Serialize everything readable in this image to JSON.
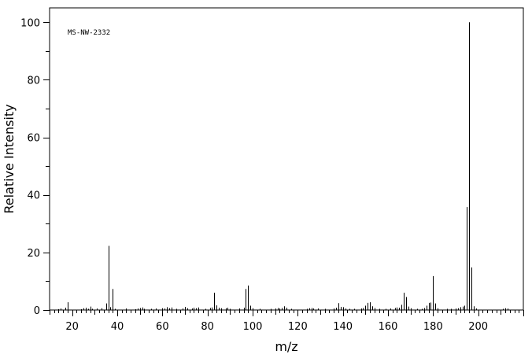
{
  "chart_data": {
    "type": "bar",
    "annotation": "MS-NW-2332",
    "xlabel": "m/z",
    "ylabel": "Relative Intensity",
    "xlim": [
      10,
      220
    ],
    "ylim": [
      0,
      105
    ],
    "x_ticks": [
      20,
      40,
      60,
      80,
      100,
      120,
      140,
      160,
      180,
      200
    ],
    "y_ticks": [
      0,
      20,
      40,
      60,
      80,
      100
    ],
    "grid": false,
    "legend": "none",
    "colors": {
      "line": "#000000",
      "background": "#ffffff"
    },
    "peaks": [
      {
        "x": 14,
        "y": 0.3
      },
      {
        "x": 15,
        "y": 0.5
      },
      {
        "x": 17,
        "y": 0.8
      },
      {
        "x": 18,
        "y": 2.7
      },
      {
        "x": 24,
        "y": 0.3
      },
      {
        "x": 25,
        "y": 0.6
      },
      {
        "x": 26,
        "y": 0.8
      },
      {
        "x": 27,
        "y": 0.4
      },
      {
        "x": 28,
        "y": 1.2
      },
      {
        "x": 29,
        "y": 0.4
      },
      {
        "x": 31,
        "y": 0.5
      },
      {
        "x": 33,
        "y": 0.6
      },
      {
        "x": 35,
        "y": 2.3
      },
      {
        "x": 36,
        "y": 22.3
      },
      {
        "x": 37,
        "y": 1.0
      },
      {
        "x": 38,
        "y": 7.3
      },
      {
        "x": 39,
        "y": 0.4
      },
      {
        "x": 44,
        "y": 0.5
      },
      {
        "x": 48,
        "y": 0.3
      },
      {
        "x": 49,
        "y": 0.5
      },
      {
        "x": 50,
        "y": 0.7
      },
      {
        "x": 51,
        "y": 0.9
      },
      {
        "x": 52,
        "y": 0.4
      },
      {
        "x": 55,
        "y": 0.4
      },
      {
        "x": 57,
        "y": 0.5
      },
      {
        "x": 60,
        "y": 0.6
      },
      {
        "x": 61,
        "y": 0.5
      },
      {
        "x": 62,
        "y": 1.0
      },
      {
        "x": 63,
        "y": 0.6
      },
      {
        "x": 64,
        "y": 0.9
      },
      {
        "x": 66,
        "y": 0.4
      },
      {
        "x": 69,
        "y": 0.5
      },
      {
        "x": 70,
        "y": 1.1
      },
      {
        "x": 71,
        "y": 0.6
      },
      {
        "x": 73,
        "y": 0.5
      },
      {
        "x": 74,
        "y": 0.8
      },
      {
        "x": 75,
        "y": 0.6
      },
      {
        "x": 76,
        "y": 0.9
      },
      {
        "x": 79,
        "y": 0.4
      },
      {
        "x": 81,
        "y": 0.7
      },
      {
        "x": 82,
        "y": 0.9
      },
      {
        "x": 83,
        "y": 6.0
      },
      {
        "x": 84,
        "y": 1.6
      },
      {
        "x": 85,
        "y": 0.8
      },
      {
        "x": 86,
        "y": 0.6
      },
      {
        "x": 88,
        "y": 0.6
      },
      {
        "x": 89,
        "y": 0.8
      },
      {
        "x": 90,
        "y": 0.4
      },
      {
        "x": 94,
        "y": 0.5
      },
      {
        "x": 96,
        "y": 0.8
      },
      {
        "x": 97,
        "y": 7.3
      },
      {
        "x": 98,
        "y": 8.5
      },
      {
        "x": 99,
        "y": 1.5
      },
      {
        "x": 100,
        "y": 0.6
      },
      {
        "x": 103,
        "y": 0.4
      },
      {
        "x": 108,
        "y": 0.4
      },
      {
        "x": 110,
        "y": 0.5
      },
      {
        "x": 111,
        "y": 0.7
      },
      {
        "x": 112,
        "y": 0.5
      },
      {
        "x": 113,
        "y": 0.7
      },
      {
        "x": 114,
        "y": 1.3
      },
      {
        "x": 115,
        "y": 0.8
      },
      {
        "x": 117,
        "y": 0.4
      },
      {
        "x": 124,
        "y": 0.4
      },
      {
        "x": 125,
        "y": 0.6
      },
      {
        "x": 126,
        "y": 0.7
      },
      {
        "x": 127,
        "y": 0.5
      },
      {
        "x": 129,
        "y": 0.5
      },
      {
        "x": 132,
        "y": 0.4
      },
      {
        "x": 136,
        "y": 0.5
      },
      {
        "x": 137,
        "y": 0.8
      },
      {
        "x": 138,
        "y": 2.4
      },
      {
        "x": 139,
        "y": 1.1
      },
      {
        "x": 140,
        "y": 1.0
      },
      {
        "x": 141,
        "y": 0.5
      },
      {
        "x": 143,
        "y": 0.4
      },
      {
        "x": 145,
        "y": 0.4
      },
      {
        "x": 148,
        "y": 0.5
      },
      {
        "x": 149,
        "y": 0.7
      },
      {
        "x": 150,
        "y": 1.5
      },
      {
        "x": 151,
        "y": 2.5
      },
      {
        "x": 152,
        "y": 2.7
      },
      {
        "x": 153,
        "y": 1.3
      },
      {
        "x": 154,
        "y": 0.7
      },
      {
        "x": 156,
        "y": 0.4
      },
      {
        "x": 159,
        "y": 0.4
      },
      {
        "x": 161,
        "y": 0.5
      },
      {
        "x": 163,
        "y": 0.7
      },
      {
        "x": 164,
        "y": 0.9
      },
      {
        "x": 165,
        "y": 0.8
      },
      {
        "x": 166,
        "y": 1.8
      },
      {
        "x": 167,
        "y": 6.0
      },
      {
        "x": 168,
        "y": 4.5
      },
      {
        "x": 169,
        "y": 1.2
      },
      {
        "x": 170,
        "y": 0.6
      },
      {
        "x": 173,
        "y": 0.4
      },
      {
        "x": 175,
        "y": 0.4
      },
      {
        "x": 176,
        "y": 0.7
      },
      {
        "x": 177,
        "y": 1.5
      },
      {
        "x": 178,
        "y": 2.5
      },
      {
        "x": 179,
        "y": 2.6
      },
      {
        "x": 180,
        "y": 11.8
      },
      {
        "x": 181,
        "y": 2.3
      },
      {
        "x": 182,
        "y": 0.6
      },
      {
        "x": 186,
        "y": 0.4
      },
      {
        "x": 188,
        "y": 0.4
      },
      {
        "x": 190,
        "y": 0.5
      },
      {
        "x": 191,
        "y": 0.6
      },
      {
        "x": 192,
        "y": 1.0
      },
      {
        "x": 193,
        "y": 1.2
      },
      {
        "x": 194,
        "y": 1.5
      },
      {
        "x": 195,
        "y": 35.8
      },
      {
        "x": 196,
        "y": 100.0
      },
      {
        "x": 197,
        "y": 14.8
      },
      {
        "x": 198,
        "y": 1.3
      },
      {
        "x": 199,
        "y": 0.5
      },
      {
        "x": 211,
        "y": 0.4
      },
      {
        "x": 212,
        "y": 0.6
      },
      {
        "x": 213,
        "y": 0.5
      }
    ]
  }
}
